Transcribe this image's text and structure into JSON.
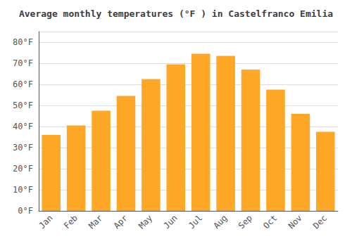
{
  "chart_data": {
    "type": "bar",
    "title": "Average monthly temperatures (°F ) in Castelfranco Emilia",
    "categories": [
      "Jan",
      "Feb",
      "Mar",
      "Apr",
      "May",
      "Jun",
      "Jul",
      "Aug",
      "Sep",
      "Oct",
      "Nov",
      "Dec"
    ],
    "values": [
      36,
      40.5,
      47.5,
      54.5,
      62.5,
      69.5,
      74.5,
      73.5,
      67,
      57.5,
      46,
      37.5
    ],
    "color": "#FFA726",
    "ylim": [
      0,
      85
    ],
    "yticks": [
      {
        "value": 0,
        "label": "0°F"
      },
      {
        "value": 10,
        "label": "10°F"
      },
      {
        "value": 20,
        "label": "20°F"
      },
      {
        "value": 30,
        "label": "30°F"
      },
      {
        "value": 40,
        "label": "40°F"
      },
      {
        "value": 50,
        "label": "50°F"
      },
      {
        "value": 60,
        "label": "60°F"
      },
      {
        "value": 70,
        "label": "70°F"
      },
      {
        "value": 80,
        "label": "80°F"
      }
    ],
    "grid": true
  }
}
